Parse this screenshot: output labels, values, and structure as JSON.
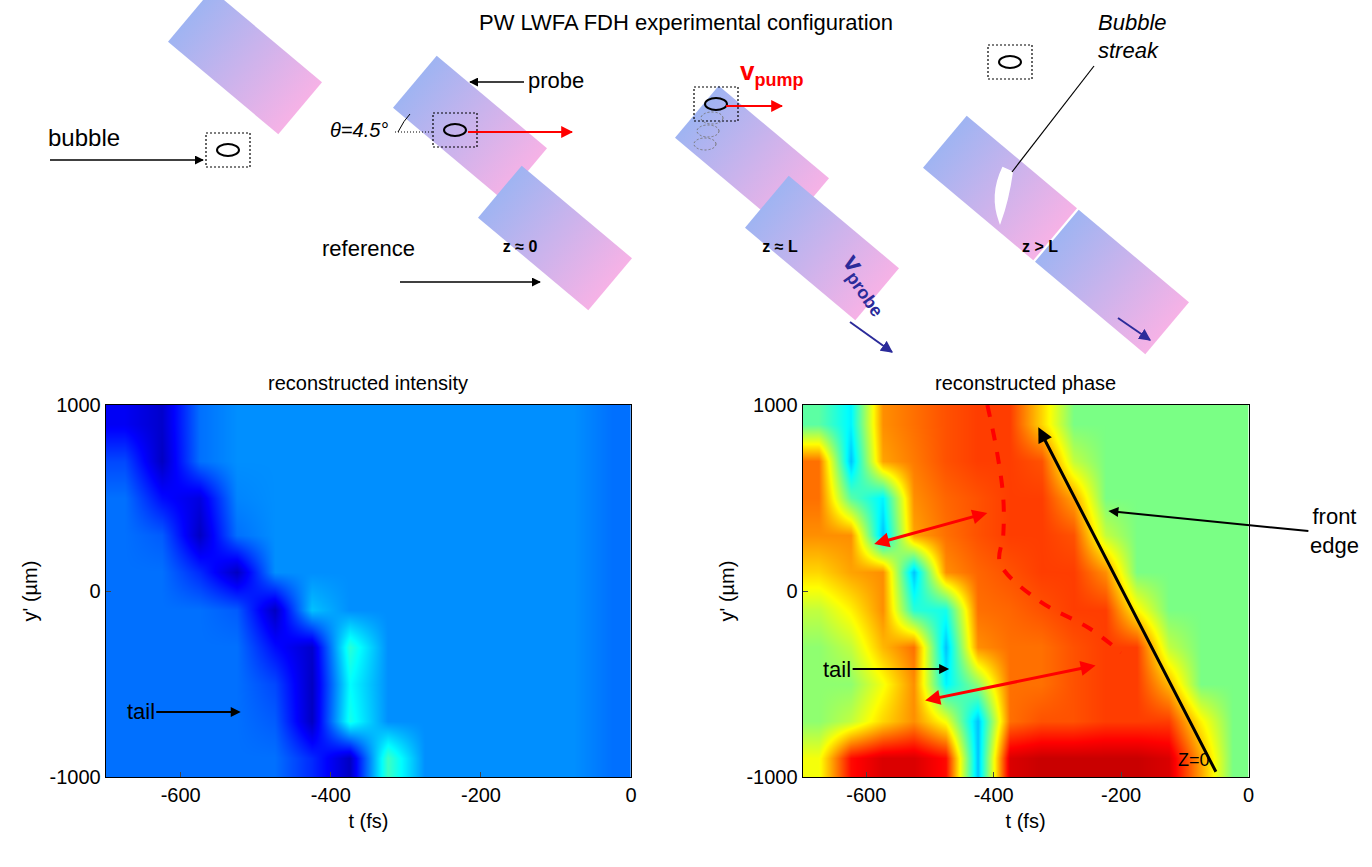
{
  "title": "PW LWFA FDH experimental configuration",
  "diagram": {
    "bubble": "bubble",
    "angle": "θ=4.5°",
    "probe": "probe",
    "reference": "reference",
    "v_pump": {
      "main": "v",
      "sub": "pump"
    },
    "v_probe": {
      "main": "v",
      "sub": "probe"
    },
    "bubble_streak": "Bubble streak",
    "positions": [
      "z ≈ 0",
      "z ≈ L",
      "z > L"
    ]
  },
  "chart_data": [
    {
      "type": "heatmap",
      "title": "reconstructed intensity",
      "x_label": "t (fs)",
      "y_label": "y' (µm)",
      "color": "jet",
      "x": [
        -675,
        -625,
        -575,
        -525,
        -475,
        -425,
        -375,
        -325,
        -275,
        -225,
        -175,
        -125,
        -75,
        -25
      ],
      "y": [
        -900,
        -700,
        -500,
        -300,
        -100,
        100,
        300,
        500,
        700,
        900
      ],
      "z": [
        [
          0.22,
          0.22,
          0.22,
          0.22,
          0.22,
          0.15,
          0.05,
          0.42,
          0.25,
          0.25,
          0.25,
          0.25,
          0.25,
          0.22
        ],
        [
          0.22,
          0.22,
          0.22,
          0.22,
          0.2,
          0.05,
          0.38,
          0.25,
          0.25,
          0.25,
          0.25,
          0.25,
          0.25,
          0.22
        ],
        [
          0.22,
          0.22,
          0.22,
          0.22,
          0.18,
          0.05,
          0.36,
          0.25,
          0.25,
          0.25,
          0.25,
          0.25,
          0.25,
          0.22
        ],
        [
          0.22,
          0.22,
          0.22,
          0.22,
          0.12,
          0.06,
          0.4,
          0.25,
          0.25,
          0.25,
          0.25,
          0.25,
          0.25,
          0.22
        ],
        [
          0.22,
          0.22,
          0.22,
          0.2,
          0.05,
          0.3,
          0.25,
          0.25,
          0.25,
          0.25,
          0.25,
          0.25,
          0.25,
          0.22
        ],
        [
          0.22,
          0.22,
          0.15,
          0.05,
          0.25,
          0.25,
          0.25,
          0.25,
          0.25,
          0.25,
          0.25,
          0.25,
          0.25,
          0.22
        ],
        [
          0.22,
          0.2,
          0.05,
          0.22,
          0.25,
          0.25,
          0.25,
          0.25,
          0.25,
          0.25,
          0.25,
          0.25,
          0.25,
          0.22
        ],
        [
          0.22,
          0.12,
          0.08,
          0.24,
          0.25,
          0.25,
          0.25,
          0.25,
          0.25,
          0.25,
          0.25,
          0.25,
          0.25,
          0.22
        ],
        [
          0.18,
          0.05,
          0.22,
          0.25,
          0.25,
          0.25,
          0.25,
          0.25,
          0.25,
          0.25,
          0.25,
          0.25,
          0.25,
          0.22
        ],
        [
          0.1,
          0.06,
          0.22,
          0.25,
          0.25,
          0.25,
          0.25,
          0.25,
          0.25,
          0.25,
          0.25,
          0.25,
          0.25,
          0.22
        ]
      ],
      "zlim": [
        0,
        1
      ],
      "xlim": [
        -700,
        0
      ],
      "xticks": [
        -600,
        -400,
        -200,
        0
      ],
      "ylim": [
        -1000,
        1000
      ],
      "yticks": [
        -1000,
        0,
        1000
      ],
      "labels": [
        {
          "text": "tail",
          "t": -520,
          "y": -650
        }
      ]
    },
    {
      "type": "heatmap",
      "title": "reconstructed phase",
      "x_label": "t (fs)",
      "y_label": "y' (µm)",
      "color": "jet",
      "x": [
        -675,
        -625,
        -575,
        -525,
        -475,
        -425,
        -375,
        -325,
        -275,
        -225,
        -175,
        -125,
        -75,
        -25
      ],
      "y": [
        -900,
        -700,
        -500,
        -300,
        -100,
        100,
        300,
        500,
        700,
        900
      ],
      "z": [
        [
          0.6,
          0.85,
          0.9,
          0.9,
          0.85,
          0.3,
          0.9,
          0.92,
          0.92,
          0.92,
          0.92,
          0.9,
          0.7,
          0.48
        ],
        [
          0.5,
          0.55,
          0.65,
          0.72,
          0.6,
          0.3,
          0.75,
          0.78,
          0.78,
          0.8,
          0.8,
          0.8,
          0.62,
          0.48
        ],
        [
          0.5,
          0.5,
          0.6,
          0.72,
          0.35,
          0.5,
          0.75,
          0.75,
          0.78,
          0.8,
          0.8,
          0.68,
          0.48,
          0.48
        ],
        [
          0.5,
          0.55,
          0.68,
          0.75,
          0.3,
          0.72,
          0.75,
          0.75,
          0.78,
          0.8,
          0.8,
          0.55,
          0.48,
          0.48
        ],
        [
          0.55,
          0.62,
          0.72,
          0.4,
          0.38,
          0.75,
          0.76,
          0.78,
          0.8,
          0.8,
          0.62,
          0.48,
          0.48,
          0.48
        ],
        [
          0.65,
          0.7,
          0.72,
          0.3,
          0.72,
          0.76,
          0.78,
          0.8,
          0.8,
          0.72,
          0.48,
          0.48,
          0.48,
          0.48
        ],
        [
          0.72,
          0.72,
          0.3,
          0.7,
          0.75,
          0.78,
          0.8,
          0.8,
          0.78,
          0.55,
          0.48,
          0.48,
          0.48,
          0.48
        ],
        [
          0.75,
          0.45,
          0.35,
          0.72,
          0.76,
          0.78,
          0.8,
          0.8,
          0.7,
          0.48,
          0.48,
          0.48,
          0.48,
          0.48
        ],
        [
          0.75,
          0.3,
          0.7,
          0.74,
          0.78,
          0.8,
          0.8,
          0.78,
          0.55,
          0.48,
          0.48,
          0.48,
          0.48,
          0.48
        ],
        [
          0.45,
          0.35,
          0.72,
          0.75,
          0.78,
          0.8,
          0.8,
          0.65,
          0.48,
          0.48,
          0.48,
          0.48,
          0.48,
          0.48
        ]
      ],
      "zlim": [
        0,
        1
      ],
      "xlim": [
        -700,
        0
      ],
      "xticks": [
        -600,
        -400,
        -200,
        0
      ],
      "ylim": [
        -1000,
        1000
      ],
      "yticks": [
        -1000,
        0,
        1000
      ],
      "labels": [
        {
          "text": "tail",
          "t": -470,
          "y": -420
        },
        {
          "text": "front edge",
          "t": -220,
          "y": 430
        },
        {
          "text": "Z=0",
          "t": -85,
          "y": -910
        }
      ],
      "dashed_curve": {
        "t": [
          -410,
          -395,
          -385,
          -385,
          -390,
          -330,
          -250,
          -200
        ],
        "y": [
          1000,
          750,
          500,
          300,
          150,
          -50,
          -200,
          -330
        ]
      },
      "double_arrows": [
        {
          "t": [
            -590,
            -410
          ],
          "y": [
            250,
            420
          ]
        },
        {
          "t": [
            -510,
            -240
          ],
          "y": [
            -590,
            -400
          ]
        }
      ],
      "edge_arrow": {
        "t": [
          -50,
          -330
        ],
        "y": [
          -980,
          880
        ]
      }
    }
  ]
}
